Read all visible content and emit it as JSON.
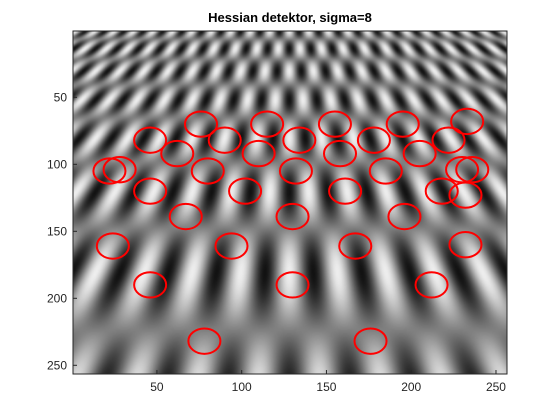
{
  "chart_data": {
    "type": "image",
    "title": "Hessian detektor, sigma=8",
    "xlabel": "",
    "ylabel": "",
    "x_range": [
      1,
      256
    ],
    "y_range": [
      1,
      256
    ],
    "y_direction": "reversed",
    "colormap": "gray",
    "image_description": "grayscale checker-like texture receding in perspective, fine near top, large blobs at bottom",
    "x_ticks": [
      50,
      100,
      150,
      200,
      250
    ],
    "y_ticks": [
      50,
      100,
      150,
      200,
      250
    ],
    "marker_color": "#ff0000",
    "marker_radius_units": 7,
    "detections": [
      {
        "x": 76,
        "y": 70
      },
      {
        "x": 115,
        "y": 70
      },
      {
        "x": 155,
        "y": 70
      },
      {
        "x": 195,
        "y": 70
      },
      {
        "x": 233,
        "y": 68
      },
      {
        "x": 46,
        "y": 82
      },
      {
        "x": 90,
        "y": 82
      },
      {
        "x": 134,
        "y": 82
      },
      {
        "x": 178,
        "y": 82
      },
      {
        "x": 222,
        "y": 82
      },
      {
        "x": 62,
        "y": 92
      },
      {
        "x": 110,
        "y": 92
      },
      {
        "x": 158,
        "y": 92
      },
      {
        "x": 205,
        "y": 92
      },
      {
        "x": 22,
        "y": 105
      },
      {
        "x": 28,
        "y": 104
      },
      {
        "x": 80,
        "y": 105
      },
      {
        "x": 132,
        "y": 105
      },
      {
        "x": 185,
        "y": 105
      },
      {
        "x": 230,
        "y": 104
      },
      {
        "x": 236,
        "y": 104
      },
      {
        "x": 46,
        "y": 120
      },
      {
        "x": 102,
        "y": 120
      },
      {
        "x": 161,
        "y": 120
      },
      {
        "x": 218,
        "y": 120
      },
      {
        "x": 232,
        "y": 123
      },
      {
        "x": 67,
        "y": 139
      },
      {
        "x": 130,
        "y": 139
      },
      {
        "x": 196,
        "y": 139
      },
      {
        "x": 24,
        "y": 161
      },
      {
        "x": 94,
        "y": 161
      },
      {
        "x": 167,
        "y": 161
      },
      {
        "x": 232,
        "y": 160
      },
      {
        "x": 46,
        "y": 190
      },
      {
        "x": 130,
        "y": 190
      },
      {
        "x": 212,
        "y": 190
      },
      {
        "x": 78,
        "y": 232
      },
      {
        "x": 176,
        "y": 232
      }
    ]
  }
}
